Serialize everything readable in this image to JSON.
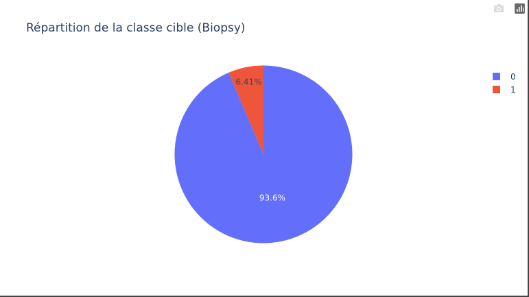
{
  "modebar": {
    "icons": [
      "camera-icon",
      "plotly-logo-icon"
    ]
  },
  "chart_data": {
    "type": "pie",
    "title": "Répartition de la classe cible (Biopsy)",
    "labels": [
      "0",
      "1"
    ],
    "values": [
      93.59,
      6.41
    ],
    "text_labels": [
      "93.6%",
      "6.41%"
    ],
    "colors": [
      "#636efa",
      "#ef553b"
    ],
    "text_colors": [
      "#ffffff",
      "#444444"
    ],
    "sort": "descending",
    "direction": "clockwise",
    "start_angle": "12 o'clock",
    "legend_position": "top-right"
  }
}
